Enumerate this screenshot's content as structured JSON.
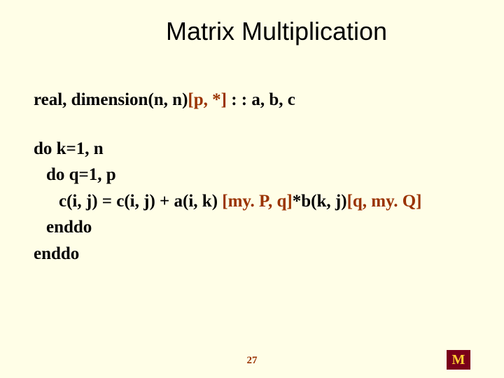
{
  "title": "Matrix Multiplication",
  "declaration": {
    "prefix": "real, dimension(n, n)",
    "bracket": "[p, *]",
    "suffix": " : : a, b, c"
  },
  "code": {
    "line1": "do k=1, n",
    "line2": "do q=1, p",
    "line3_prefix": "c(i, j) = c(i, j) + a(i, k) ",
    "line3_bracket1": "[my. P, q]",
    "line3_mid": "*b(k, j)",
    "line3_bracket2": "[q, my. Q]",
    "line4": "enddo",
    "line5": "enddo"
  },
  "pageNumber": "27",
  "logo": {
    "letter": "M",
    "bgColor": "#7a0019",
    "fgColor": "#ffcc33"
  },
  "colors": {
    "background": "#fffee7",
    "text": "#000000",
    "accent": "#9a3300"
  }
}
